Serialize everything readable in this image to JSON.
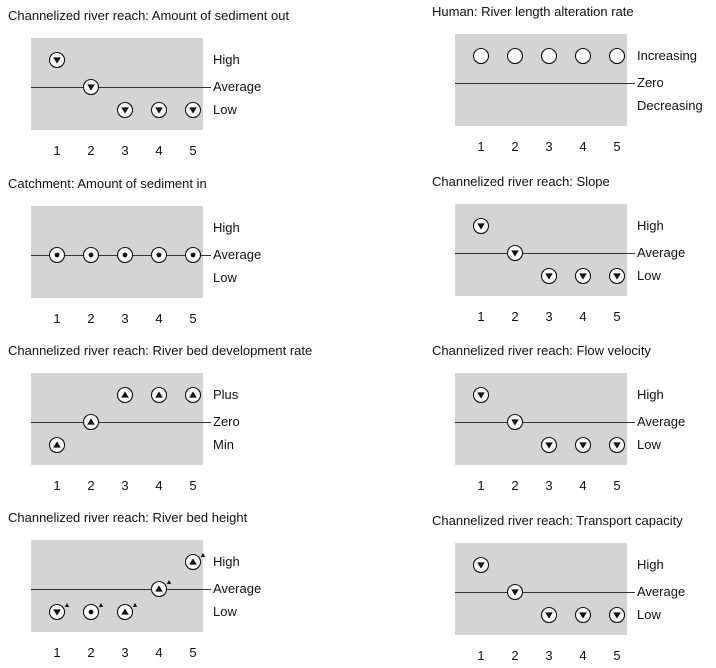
{
  "panels": [
    {
      "title": "Channelized river reach: Amount of sediment out",
      "levels": [
        "High",
        "Average",
        "Low"
      ],
      "x": [
        "1",
        "2",
        "3",
        "4",
        "5"
      ],
      "markers": [
        {
          "x": 1,
          "level": "High",
          "symbol": "triangle-down"
        },
        {
          "x": 2,
          "level": "Average",
          "symbol": "triangle-down"
        },
        {
          "x": 3,
          "level": "Low",
          "symbol": "triangle-down"
        },
        {
          "x": 4,
          "level": "Low",
          "symbol": "triangle-down"
        },
        {
          "x": 5,
          "level": "Low",
          "symbol": "triangle-down"
        }
      ]
    },
    {
      "title": "Human: River length alteration rate",
      "levels": [
        "Increasing",
        "Zero",
        "Decreasing"
      ],
      "x": [
        "1",
        "2",
        "3",
        "4",
        "5"
      ],
      "markers": [
        {
          "x": 1,
          "level": "Increasing",
          "symbol": "empty"
        },
        {
          "x": 2,
          "level": "Increasing",
          "symbol": "empty"
        },
        {
          "x": 3,
          "level": "Increasing",
          "symbol": "empty"
        },
        {
          "x": 4,
          "level": "Increasing",
          "symbol": "empty"
        },
        {
          "x": 5,
          "level": "Increasing",
          "symbol": "empty"
        }
      ]
    },
    {
      "title": "Catchment: Amount of sediment in",
      "levels": [
        "High",
        "Average",
        "Low"
      ],
      "x": [
        "1",
        "2",
        "3",
        "4",
        "5"
      ],
      "markers": [
        {
          "x": 1,
          "level": "Average",
          "symbol": "dot"
        },
        {
          "x": 2,
          "level": "Average",
          "symbol": "dot"
        },
        {
          "x": 3,
          "level": "Average",
          "symbol": "dot"
        },
        {
          "x": 4,
          "level": "Average",
          "symbol": "dot"
        },
        {
          "x": 5,
          "level": "Average",
          "symbol": "dot"
        }
      ]
    },
    {
      "title": "Channelized river reach: Slope",
      "levels": [
        "High",
        "Average",
        "Low"
      ],
      "x": [
        "1",
        "2",
        "3",
        "4",
        "5"
      ],
      "markers": [
        {
          "x": 1,
          "level": "High",
          "symbol": "triangle-down"
        },
        {
          "x": 2,
          "level": "Average",
          "symbol": "triangle-down"
        },
        {
          "x": 3,
          "level": "Low",
          "symbol": "triangle-down"
        },
        {
          "x": 4,
          "level": "Low",
          "symbol": "triangle-down"
        },
        {
          "x": 5,
          "level": "Low",
          "symbol": "triangle-down"
        }
      ]
    },
    {
      "title": "Channelized river reach: River bed development rate",
      "levels": [
        "Plus",
        "Zero",
        "Min"
      ],
      "x": [
        "1",
        "2",
        "3",
        "4",
        "5"
      ],
      "markers": [
        {
          "x": 1,
          "level": "Min",
          "symbol": "triangle-up"
        },
        {
          "x": 2,
          "level": "Zero",
          "symbol": "triangle-up"
        },
        {
          "x": 3,
          "level": "Plus",
          "symbol": "triangle-up"
        },
        {
          "x": 4,
          "level": "Plus",
          "symbol": "triangle-up"
        },
        {
          "x": 5,
          "level": "Plus",
          "symbol": "triangle-up"
        }
      ]
    },
    {
      "title": "Channelized river reach: Flow velocity",
      "levels": [
        "High",
        "Average",
        "Low"
      ],
      "x": [
        "1",
        "2",
        "3",
        "4",
        "5"
      ],
      "markers": [
        {
          "x": 1,
          "level": "High",
          "symbol": "triangle-down"
        },
        {
          "x": 2,
          "level": "Average",
          "symbol": "triangle-down"
        },
        {
          "x": 3,
          "level": "Low",
          "symbol": "triangle-down"
        },
        {
          "x": 4,
          "level": "Low",
          "symbol": "triangle-down"
        },
        {
          "x": 5,
          "level": "Low",
          "symbol": "triangle-down"
        }
      ]
    },
    {
      "title": "Channelized river reach: River bed height",
      "levels": [
        "High",
        "Average",
        "Low"
      ],
      "x": [
        "1",
        "2",
        "3",
        "4",
        "5"
      ],
      "markers": [
        {
          "x": 1,
          "level": "Low",
          "symbol": "triangle-down",
          "trend": "up"
        },
        {
          "x": 2,
          "level": "Low",
          "symbol": "dot",
          "trend": "up"
        },
        {
          "x": 3,
          "level": "Low",
          "symbol": "triangle-up",
          "trend": "up"
        },
        {
          "x": 4,
          "level": "Average",
          "symbol": "triangle-up",
          "trend": "up"
        },
        {
          "x": 5,
          "level": "High",
          "symbol": "triangle-up",
          "trend": "up"
        }
      ]
    },
    {
      "title": "Channelized river reach: Transport capacity",
      "levels": [
        "High",
        "Average",
        "Low"
      ],
      "x": [
        "1",
        "2",
        "3",
        "4",
        "5"
      ],
      "markers": [
        {
          "x": 1,
          "level": "High",
          "symbol": "triangle-down"
        },
        {
          "x": 2,
          "level": "Average",
          "symbol": "triangle-down"
        },
        {
          "x": 3,
          "level": "Low",
          "symbol": "triangle-down"
        },
        {
          "x": 4,
          "level": "Low",
          "symbol": "triangle-down"
        },
        {
          "x": 5,
          "level": "Low",
          "symbol": "triangle-down"
        }
      ]
    }
  ]
}
